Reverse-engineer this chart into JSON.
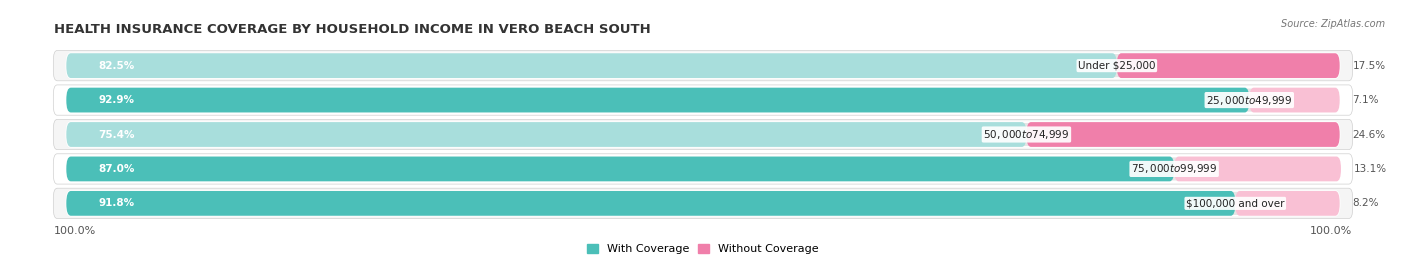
{
  "title": "HEALTH INSURANCE COVERAGE BY HOUSEHOLD INCOME IN VERO BEACH SOUTH",
  "source": "Source: ZipAtlas.com",
  "categories": [
    "Under $25,000",
    "$25,000 to $49,999",
    "$50,000 to $74,999",
    "$75,000 to $99,999",
    "$100,000 and over"
  ],
  "with_coverage": [
    82.5,
    92.9,
    75.4,
    87.0,
    91.8
  ],
  "without_coverage": [
    17.5,
    7.1,
    24.6,
    13.1,
    8.2
  ],
  "color_with": "#4BBFB8",
  "color_with_light": "#A8DEDC",
  "color_without": "#F07FAA",
  "color_without_light": "#F9C0D4",
  "bg_color": "#ffffff",
  "row_colors": [
    "#f5f5f5",
    "#ffffff",
    "#f5f5f5",
    "#ffffff",
    "#f5f5f5"
  ],
  "title_fontsize": 9.5,
  "label_fontsize": 7.5,
  "cat_fontsize": 7.5,
  "tick_fontsize": 8,
  "legend_fontsize": 8,
  "axis_label_left": "100.0%",
  "axis_label_right": "100.0%"
}
